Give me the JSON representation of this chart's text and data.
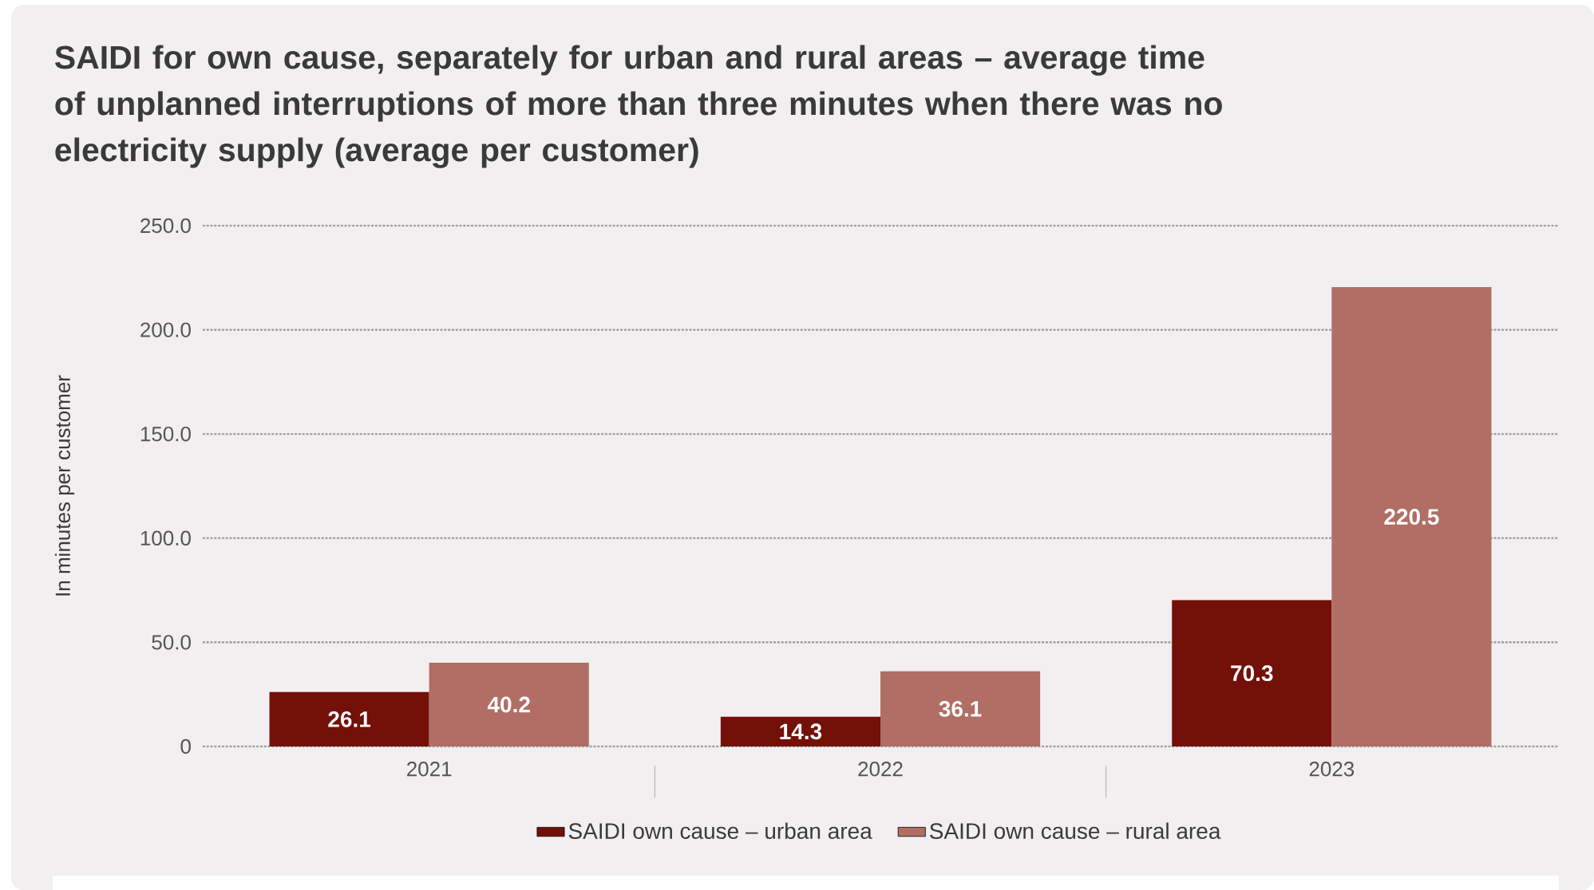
{
  "chart_data": {
    "type": "bar",
    "title": "SAIDI for own cause, separately for urban and rural areas – average time of unplanned interruptions of more than three minutes when there was no electricity supply (average per customer)",
    "ylabel": "In minutes per customer",
    "categories": [
      "2021",
      "2022",
      "2023"
    ],
    "series": [
      {
        "name": "SAIDI own cause – urban area",
        "color": "#731008",
        "values": [
          26.1,
          14.3,
          70.3
        ]
      },
      {
        "name": "SAIDI own cause – rural area",
        "color": "#b06e64",
        "values": [
          40.2,
          36.1,
          220.5
        ]
      }
    ],
    "ylim": [
      0,
      250
    ],
    "yticks": [
      0,
      {
        "value": 50,
        "label": "50.0"
      },
      {
        "value": 100,
        "label": "100.0"
      },
      {
        "value": 150,
        "label": "150.0"
      },
      {
        "value": 200,
        "label": "200.0"
      },
      {
        "value": 250,
        "label": "250.0"
      }
    ],
    "grid": "y",
    "legend": "bottom",
    "data_labels": true
  }
}
